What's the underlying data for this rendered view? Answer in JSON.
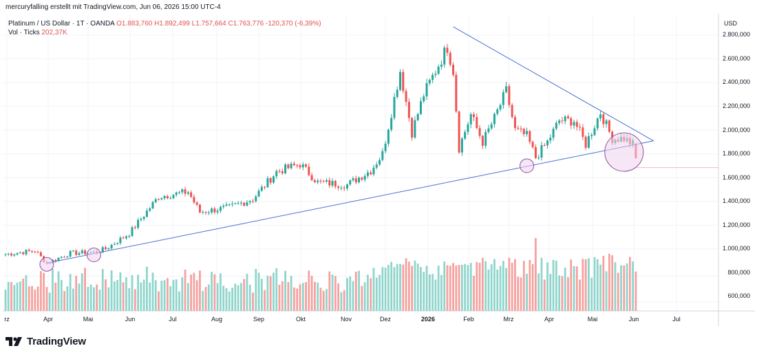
{
  "caption": "mercuryfalling erstellt mit TradingView.com, Jun 06, 2026 15:00 UTC-4",
  "legend": {
    "symbol": "Platinum / US Dollar · 1T · OANDA",
    "open": "O1.883,760",
    "high": "H1.892,499",
    "low": "L1.757,664",
    "close": "C1.763,776",
    "change": "-120,370 (-6,39%)",
    "volume_label": "Vol · Ticks",
    "volume_value": "202,37K"
  },
  "brand": "TradingView",
  "chart_data": {
    "type": "candlestick",
    "unit": "USD",
    "y_ticks": [
      "2.800,000",
      "2.600,000",
      "2.400,000",
      "2.200,000",
      "2.000,000",
      "1.800,000",
      "1.600,000",
      "1.400,000",
      "1.200,000",
      "1.000,000",
      "800,000",
      "600,000"
    ],
    "x_ticks": [
      "rz",
      "Apr",
      "Mai",
      "Jun",
      "Jul",
      "Aug",
      "Sep",
      "Okt",
      "Nov",
      "Dez",
      "2026",
      "Feb",
      "Mrz",
      "Apr",
      "Mai",
      "Jun",
      "Jul"
    ],
    "x_tick_bold": "2026",
    "ylim": [
      1000,
      2900
    ],
    "anchors": [
      {
        "t": 0,
        "p": 955
      },
      {
        "t": 10,
        "p": 985
      },
      {
        "t": 14,
        "p": 880
      },
      {
        "t": 22,
        "p": 965
      },
      {
        "t": 30,
        "p": 970
      },
      {
        "t": 34,
        "p": 1000
      },
      {
        "t": 42,
        "p": 1130
      },
      {
        "t": 52,
        "p": 1440
      },
      {
        "t": 62,
        "p": 1480
      },
      {
        "t": 66,
        "p": 1310
      },
      {
        "t": 76,
        "p": 1350
      },
      {
        "t": 84,
        "p": 1420
      },
      {
        "t": 92,
        "p": 1650
      },
      {
        "t": 100,
        "p": 1715
      },
      {
        "t": 106,
        "p": 1560
      },
      {
        "t": 116,
        "p": 1540
      },
      {
        "t": 124,
        "p": 1660
      },
      {
        "t": 128,
        "p": 1800
      },
      {
        "t": 134,
        "p": 2500
      },
      {
        "t": 138,
        "p": 1980
      },
      {
        "t": 142,
        "p": 2300
      },
      {
        "t": 146,
        "p": 2500
      },
      {
        "t": 150,
        "p": 2700
      },
      {
        "t": 152,
        "p": 2500
      },
      {
        "t": 154,
        "p": 1850
      },
      {
        "t": 158,
        "p": 2130
      },
      {
        "t": 162,
        "p": 1900
      },
      {
        "t": 166,
        "p": 2100
      },
      {
        "t": 170,
        "p": 2330
      },
      {
        "t": 173,
        "p": 2000
      },
      {
        "t": 177,
        "p": 1950
      },
      {
        "t": 180,
        "p": 1770
      },
      {
        "t": 184,
        "p": 1900
      },
      {
        "t": 188,
        "p": 2080
      },
      {
        "t": 193,
        "p": 2080
      },
      {
        "t": 197,
        "p": 1880
      },
      {
        "t": 202,
        "p": 2150
      },
      {
        "t": 206,
        "p": 1930
      },
      {
        "t": 210,
        "p": 1930
      },
      {
        "t": 213,
        "p": 1880
      },
      {
        "t": 214,
        "p": 1764
      }
    ],
    "last_candle": {
      "open": 1883.76,
      "high": 1892.499,
      "low": 1757.664,
      "close": 1763.776
    },
    "trendlines": [
      {
        "name": "support",
        "from": {
          "t": 14,
          "p": 880
        },
        "to": {
          "t": 220,
          "p": 1910
        }
      },
      {
        "name": "resistance",
        "from": {
          "t": 152,
          "p": 2870
        },
        "to": {
          "t": 220,
          "p": 1910
        }
      }
    ],
    "circles": [
      {
        "t": 14,
        "p": 870
      },
      {
        "t": 30,
        "p": 950
      },
      {
        "t": 177,
        "p": 1700
      },
      {
        "t": 210,
        "p": 1815
      }
    ],
    "volume_range": [
      530000,
      1100000
    ],
    "colors": {
      "up": "#26a69a",
      "down": "#ef5350",
      "vol_up": "#8fd5cc",
      "vol_down": "#f5a19e",
      "trendline": "#4a6fd4",
      "circle_fill": "#f0d3ee",
      "circle_stroke": "#8a4f98"
    }
  }
}
